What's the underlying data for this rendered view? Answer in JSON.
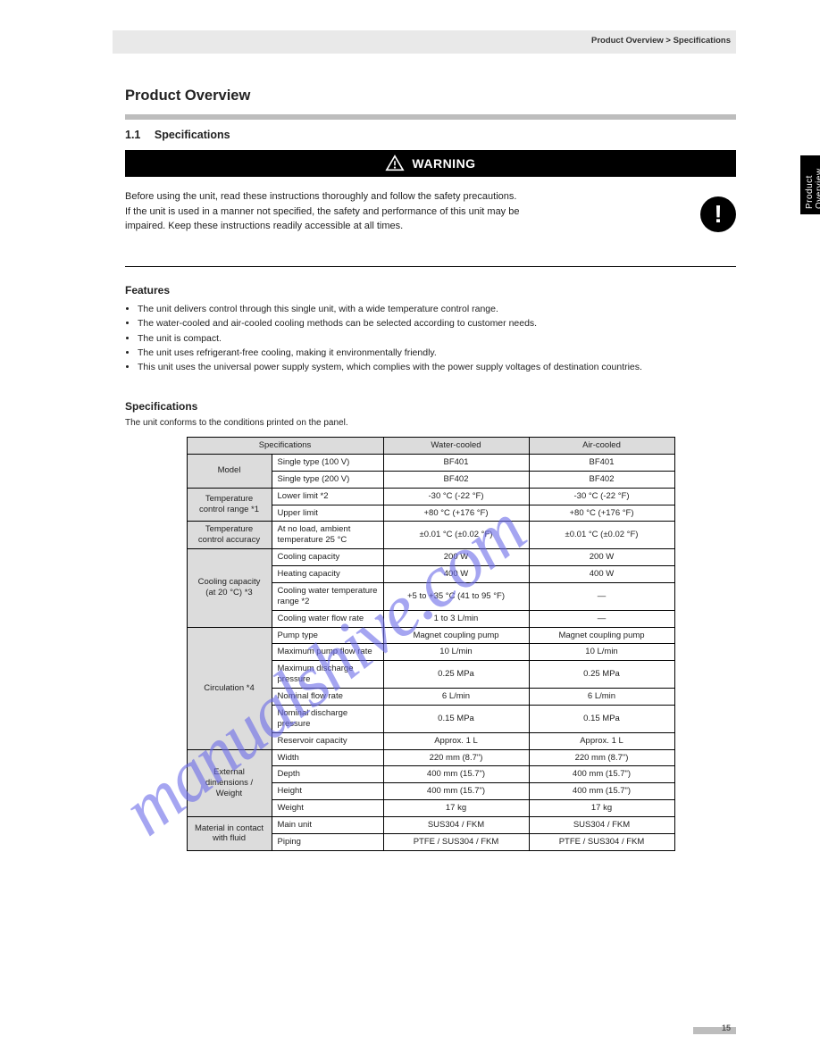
{
  "breadcrumb": "Product Overview > Specifications",
  "title": "Product Overview",
  "section": {
    "num": "1.1",
    "label": "Specifications"
  },
  "warning": {
    "heading": "WARNING",
    "lines": [
      "Before using the unit, read these instructions thoroughly and follow the safety precautions.",
      "If the unit is used in a manner not specified, the safety and performance of this unit may be",
      "impaired. Keep these instructions readily accessible at all times."
    ]
  },
  "featuresHead": "Features",
  "features": [
    "The unit delivers control through this single unit, with a wide temperature control range.",
    "The water-cooled and air-cooled cooling methods can be selected according to customer needs.",
    "The unit is compact.",
    "The unit uses refrigerant-free cooling, making it environmentally friendly.",
    "This unit uses the universal power supply system, which complies with the power supply voltages of destination countries."
  ],
  "specsHead": "Specifications",
  "printedNote": "The unit conforms to the conditions printed on the panel.",
  "colHeaders": [
    "Specifications",
    "Water-cooled",
    "Air-cooled"
  ],
  "rows": [
    {
      "h": "Model",
      "span": 2,
      "items": [
        {
          "l": "Single type (100 V)",
          "a": "BF401",
          "b": "BF401"
        },
        {
          "l": "Single type (200 V)",
          "a": "BF402",
          "b": "BF402"
        }
      ]
    },
    {
      "h": "Temperature control range *1",
      "span": 2,
      "items": [
        {
          "l": "Lower limit *2",
          "a": "-30 °C (-22 °F)",
          "b": "-30 °C (-22 °F)"
        },
        {
          "l": "Upper limit",
          "a": "+80 °C (+176 °F)",
          "b": "+80 °C (+176 °F)"
        }
      ]
    },
    {
      "h": "Temperature control accuracy",
      "span": 1,
      "items": [
        {
          "l": "At no load, ambient temperature 25 °C",
          "a": "±0.01 °C (±0.02 °F)",
          "b": "±0.01 °C (±0.02 °F)"
        }
      ]
    },
    {
      "h": "Cooling capacity (at 20 °C) *3",
      "span": 4,
      "items": [
        {
          "l": "Cooling capacity",
          "a": "200 W",
          "b": "200 W"
        },
        {
          "l": "Heating capacity",
          "a": "400 W",
          "b": "400 W"
        },
        {
          "l": "Cooling water temperature range *2",
          "a": "+5 to +35 °C (41 to 95 °F)",
          "b": "—"
        },
        {
          "l": "Cooling water flow rate",
          "a": "1 to 3 L/min",
          "b": "—"
        }
      ]
    },
    {
      "h": "Circulation *4",
      "span": 6,
      "items": [
        {
          "l": "Pump type",
          "a": "Magnet coupling pump",
          "b": "Magnet coupling pump"
        },
        {
          "l": "Maximum pump flow rate",
          "a": "10 L/min",
          "b": "10 L/min"
        },
        {
          "l": "Maximum discharge pressure",
          "a": "0.25 MPa",
          "b": "0.25 MPa"
        },
        {
          "l": "Nominal flow rate",
          "a": "6 L/min",
          "b": "6 L/min"
        },
        {
          "l": "Nominal discharge pressure",
          "a": "0.15 MPa",
          "b": "0.15 MPa"
        },
        {
          "l": "Reservoir capacity",
          "a": "Approx. 1 L",
          "b": "Approx. 1 L"
        }
      ]
    },
    {
      "h": "External dimensions / Weight",
      "span": 4,
      "items": [
        {
          "l": "Width",
          "a": "220 mm (8.7\")",
          "b": "220 mm (8.7\")"
        },
        {
          "l": "Depth",
          "a": "400 mm (15.7\")",
          "b": "400 mm (15.7\")"
        },
        {
          "l": "Height",
          "a": "400 mm (15.7\")",
          "b": "400 mm (15.7\")"
        },
        {
          "l": "Weight",
          "a": "17 kg",
          "b": "17 kg"
        }
      ]
    },
    {
      "h": "Material in contact with fluid",
      "span": 2,
      "items": [
        {
          "l": "Main unit",
          "a": "SUS304 / FKM",
          "b": "SUS304 / FKM"
        },
        {
          "l": "Piping",
          "a": "PTFE / SUS304 / FKM",
          "b": "PTFE / SUS304 / FKM"
        }
      ]
    }
  ],
  "sideTab": "Product Overview",
  "pageNum": "15",
  "watermark": "manualshive.com"
}
